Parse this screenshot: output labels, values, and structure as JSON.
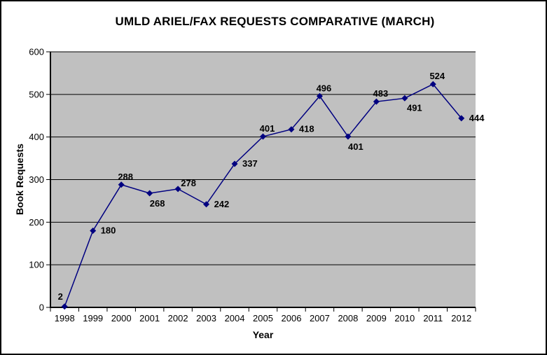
{
  "chart_data": {
    "type": "line",
    "title": "UMLD ARIEL/FAX REQUESTS COMPARATIVE (MARCH)",
    "xlabel": "Year",
    "ylabel": "Book Requests",
    "categories": [
      "1998",
      "1999",
      "2000",
      "2001",
      "2002",
      "2003",
      "2004",
      "2005",
      "2006",
      "2007",
      "2008",
      "2009",
      "2010",
      "2011",
      "2012"
    ],
    "values": [
      2,
      180,
      288,
      268,
      278,
      242,
      337,
      401,
      418,
      496,
      401,
      483,
      491,
      524,
      444
    ],
    "label_positions": [
      "above-left",
      "right",
      "above",
      "below",
      "above-right",
      "right",
      "right",
      "above",
      "right",
      "above",
      "below",
      "above",
      "below-right",
      "above",
      "right"
    ],
    "ylim": [
      0,
      600
    ],
    "ytick_step": 100,
    "yticks": [
      "0",
      "100",
      "200",
      "300",
      "400",
      "500",
      "600"
    ],
    "grid": true,
    "legend": "none",
    "marker": "diamond",
    "colors": {
      "line": "#000080",
      "marker": "#000080",
      "plot_bg": "#c0c0c0",
      "grid": "#000000",
      "axis": "#000000",
      "text": "#000000",
      "frame_border": "#000000",
      "background": "#ffffff"
    }
  }
}
